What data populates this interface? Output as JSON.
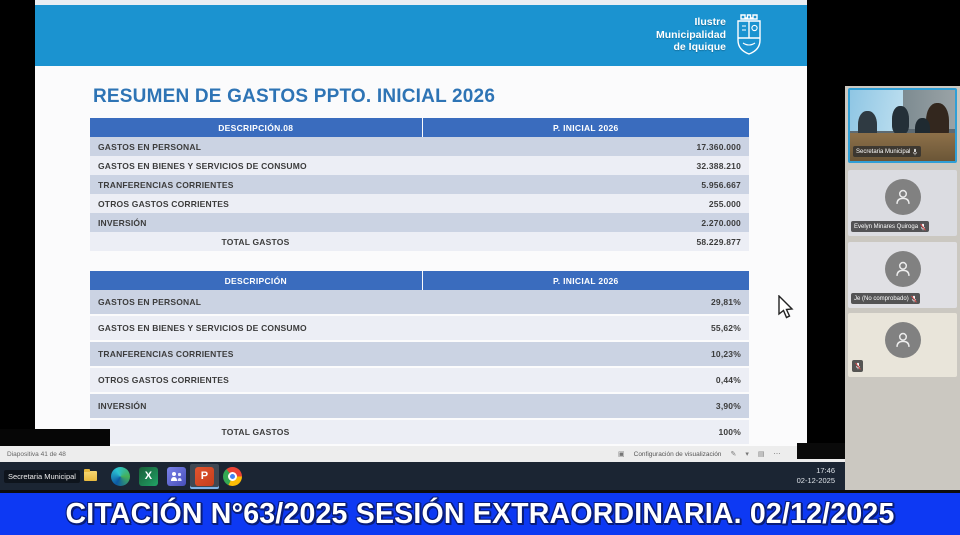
{
  "slide": {
    "title": "RESUMEN DE GASTOS PPTO. INICIAL 2026",
    "logo": {
      "line1": "Ilustre",
      "line2": "Municipalidad",
      "line3": "de Iquique"
    },
    "table1": {
      "headers": [
        "DESCRIPCIÓN.08",
        "P. INICIAL 2026"
      ],
      "rows": [
        {
          "label": "GASTOS EN PERSONAL",
          "value": "17.360.000"
        },
        {
          "label": "GASTOS EN BIENES Y SERVICIOS DE CONSUMO",
          "value": "32.388.210"
        },
        {
          "label": "TRANFERENCIAS CORRIENTES",
          "value": "5.956.667"
        },
        {
          "label": "OTROS GASTOS CORRIENTES",
          "value": "255.000"
        },
        {
          "label": "INVERSIÓN",
          "value": "2.270.000"
        },
        {
          "label": "TOTAL GASTOS",
          "value": "58.229.877",
          "total": true
        }
      ]
    },
    "table2": {
      "headers": [
        "DESCRIPCIÓN",
        "P. INICIAL 2026"
      ],
      "rows": [
        {
          "label": "GASTOS EN PERSONAL",
          "value": "29,81%"
        },
        {
          "label": "GASTOS EN BIENES Y SERVICIOS DE CONSUMO",
          "value": "55,62%"
        },
        {
          "label": "TRANFERENCIAS CORRIENTES",
          "value": "10,23%"
        },
        {
          "label": "OTROS GASTOS CORRIENTES",
          "value": "0,44%"
        },
        {
          "label": "INVERSIÓN",
          "value": "3,90%"
        },
        {
          "label": "TOTAL GASTOS",
          "value": "100%",
          "total": true
        }
      ]
    }
  },
  "presenter": {
    "slide_counter": "Diapositiva 41 de 48",
    "toolbar_label": "Configuración de visualización"
  },
  "taskbar": {
    "overlay_label": "Secretaria Municipal",
    "icons": [
      "folder-icon",
      "edge-icon",
      "excel-icon",
      "teams-icon",
      "powerpoint-icon",
      "chrome-icon"
    ],
    "excel_letter": "X",
    "ppt_letter": "P",
    "time": "17:46",
    "date": "02-12-2025"
  },
  "sidebar": {
    "participants": [
      {
        "name": "Secretaria Municipal",
        "type": "video",
        "muted": true
      },
      {
        "name": "Evelyn Minares Quiroga",
        "type": "avatar",
        "muted": true
      },
      {
        "name": "Je (No comprobado)",
        "type": "avatar",
        "muted": true
      },
      {
        "name": "",
        "type": "avatar",
        "muted": true
      }
    ]
  },
  "banner": {
    "text": "CITACIÓN N°63/2025 SESIÓN EXTRAORDINARIA. 02/12/2025"
  },
  "colors": {
    "band_blue": "#1b93d0",
    "table_header_blue": "#3a6cbe",
    "row_dark": "#cbd3e3",
    "row_light": "#eceef5",
    "title_blue": "#2e74b5",
    "banner_blue": "#0d39f3",
    "taskbar_dark": "#1b2533"
  }
}
